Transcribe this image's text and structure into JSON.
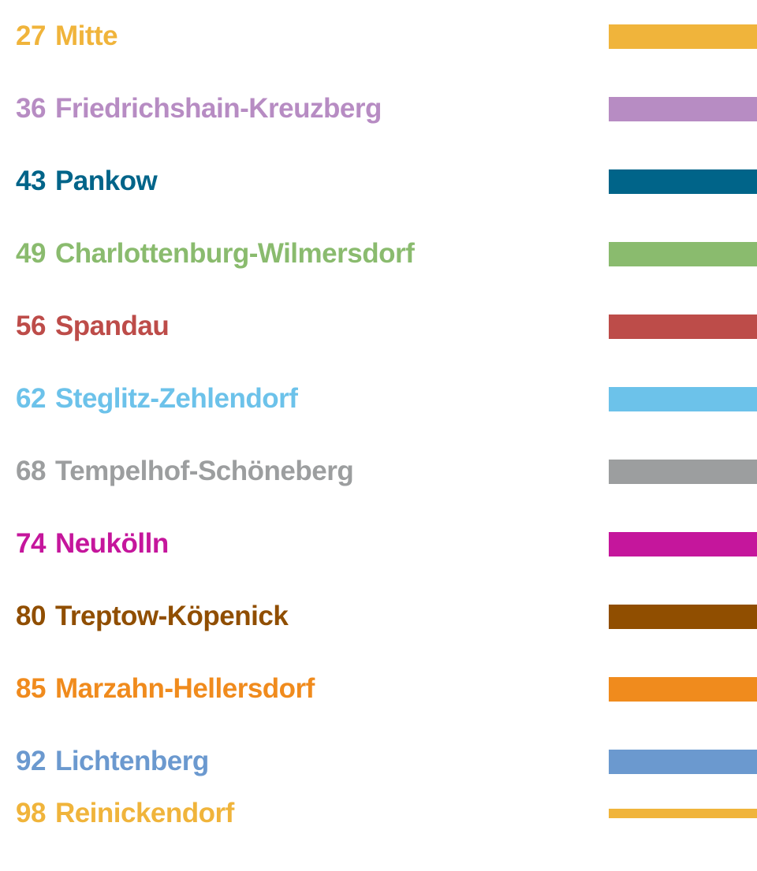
{
  "districts": [
    {
      "number": "27",
      "name": "Mitte",
      "color": "#f0b43b"
    },
    {
      "number": "36",
      "name": "Friedrichshain-Kreuzberg",
      "color": "#b78cc3"
    },
    {
      "number": "43",
      "name": "Pankow",
      "color": "#006489"
    },
    {
      "number": "49",
      "name": "Charlottenburg-Wilmersdorf",
      "color": "#8abb6e"
    },
    {
      "number": "56",
      "name": "Spandau",
      "color": "#bd4c49"
    },
    {
      "number": "62",
      "name": "Steglitz-Zehlendorf",
      "color": "#6cc2ea"
    },
    {
      "number": "68",
      "name": "Tempelhof-Schöneberg",
      "color": "#9c9e9f"
    },
    {
      "number": "74",
      "name": "Neukölln",
      "color": "#c5169c"
    },
    {
      "number": "80",
      "name": "Treptow-Köpenick",
      "color": "#904e00"
    },
    {
      "number": "85",
      "name": "Marzahn-Hellersdorf",
      "color": "#f08b1d"
    },
    {
      "number": "92",
      "name": "Lichtenberg",
      "color": "#6b99cf"
    },
    {
      "number": "98",
      "name": "Reinickendorf",
      "color": "#f0b43b"
    }
  ]
}
